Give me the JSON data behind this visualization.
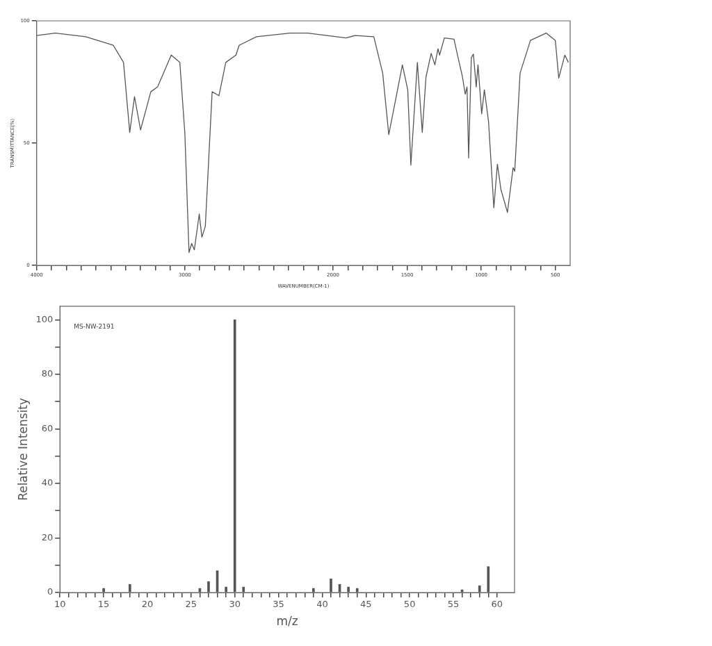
{
  "chart_data": [
    {
      "type": "line",
      "xlabel": "WAVENUMBER(CM-1)",
      "ylabel": "TRANSMITTANCE(%)",
      "xlim": [
        4000,
        400
      ],
      "ylim": [
        0,
        100
      ],
      "grid": false,
      "legend": false,
      "marker": "none",
      "line_style": "solid",
      "xticks": [
        4000,
        {
          "value": 3900,
          "label": null
        },
        {
          "value": 3800,
          "label": null
        },
        {
          "value": 3700,
          "label": null
        },
        {
          "value": 3600,
          "label": null
        },
        {
          "value": 3500,
          "label": null
        },
        {
          "value": 3400,
          "label": null
        },
        {
          "value": 3300,
          "label": null
        },
        {
          "value": 3200,
          "label": null
        },
        {
          "value": 3100,
          "label": null
        },
        3000,
        {
          "value": 2900,
          "label": null
        },
        {
          "value": 2800,
          "label": null
        },
        {
          "value": 2700,
          "label": null
        },
        {
          "value": 2600,
          "label": null
        },
        {
          "value": 2500,
          "label": null
        },
        {
          "value": 2400,
          "label": null
        },
        {
          "value": 2300,
          "label": null
        },
        {
          "value": 2200,
          "label": null
        },
        {
          "value": 2100,
          "label": null
        },
        2000,
        {
          "value": 1900,
          "label": null
        },
        {
          "value": 1800,
          "label": null
        },
        {
          "value": 1700,
          "label": null
        },
        {
          "value": 1600,
          "label": null
        },
        1500,
        {
          "value": 1400,
          "label": null
        },
        {
          "value": 1300,
          "label": null
        },
        {
          "value": 1200,
          "label": null
        },
        {
          "value": 1100,
          "label": null
        },
        1000,
        {
          "value": 900,
          "label": null
        },
        {
          "value": 800,
          "label": null
        },
        {
          "value": 700,
          "label": null
        },
        {
          "value": 600,
          "label": null
        },
        500
      ],
      "yticks": [
        0,
        50,
        100
      ],
      "series": [
        {
          "color": "#555555",
          "x": [
            4000,
            3874,
            3669,
            3483,
            3414,
            3372,
            3340,
            3299,
            3230,
            3184,
            3092,
            3034,
            3000,
            2972,
            2954,
            2936,
            2903,
            2885,
            2862,
            2816,
            2770,
            2724,
            2655,
            2634,
            2517,
            2290,
            2172,
            1912,
            1853,
            1725,
            1665,
            1624,
            1532,
            1496,
            1475,
            1454,
            1431,
            1398,
            1373,
            1338,
            1313,
            1292,
            1281,
            1249,
            1184,
            1149,
            1128,
            1108,
            1096,
            1085,
            1067,
            1053,
            1034,
            1022,
            997,
            979,
            951,
            915,
            891,
            867,
            823,
            785,
            774,
            738,
            668,
            562,
            500,
            477,
            436,
            412
          ],
          "values": [
            94,
            95,
            93.5,
            90,
            83,
            54.4,
            69,
            55.4,
            71,
            73,
            86,
            83,
            54,
            5.3,
            9,
            6.4,
            21,
            11.6,
            16,
            71,
            69.4,
            83,
            86,
            90,
            93.5,
            95,
            95,
            93,
            94,
            93.5,
            78.6,
            53.5,
            82,
            71.8,
            41,
            61,
            83,
            54.4,
            77,
            86.7,
            82,
            88.6,
            86,
            93,
            92.5,
            83,
            77.5,
            70,
            73,
            44,
            85,
            86.4,
            73,
            82,
            62,
            71.8,
            59,
            23.6,
            41.4,
            31,
            21.7,
            40,
            38.5,
            78.6,
            92,
            95,
            92,
            76.6,
            86,
            83
          ]
        }
      ]
    },
    {
      "type": "bar",
      "xlabel": "m/z",
      "ylabel": "Relative Intensity",
      "xlim": [
        10,
        62
      ],
      "ylim": [
        0,
        105
      ],
      "grid": false,
      "legend": false,
      "annotations": [
        "MS-NW-2191"
      ],
      "xticks": [
        10,
        {
          "value": 11,
          "label": null
        },
        {
          "value": 12,
          "label": null
        },
        {
          "value": 13,
          "label": null
        },
        {
          "value": 14,
          "label": null
        },
        15,
        {
          "value": 16,
          "label": null
        },
        {
          "value": 17,
          "label": null
        },
        {
          "value": 18,
          "label": null
        },
        {
          "value": 19,
          "label": null
        },
        20,
        {
          "value": 21,
          "label": null
        },
        {
          "value": 22,
          "label": null
        },
        {
          "value": 23,
          "label": null
        },
        {
          "value": 24,
          "label": null
        },
        25,
        {
          "value": 26,
          "label": null
        },
        {
          "value": 27,
          "label": null
        },
        {
          "value": 28,
          "label": null
        },
        {
          "value": 29,
          "label": null
        },
        30,
        {
          "value": 31,
          "label": null
        },
        {
          "value": 32,
          "label": null
        },
        {
          "value": 33,
          "label": null
        },
        {
          "value": 34,
          "label": null
        },
        35,
        {
          "value": 36,
          "label": null
        },
        {
          "value": 37,
          "label": null
        },
        {
          "value": 38,
          "label": null
        },
        {
          "value": 39,
          "label": null
        },
        40,
        {
          "value": 41,
          "label": null
        },
        {
          "value": 42,
          "label": null
        },
        {
          "value": 43,
          "label": null
        },
        {
          "value": 44,
          "label": null
        },
        45,
        {
          "value": 46,
          "label": null
        },
        {
          "value": 47,
          "label": null
        },
        {
          "value": 48,
          "label": null
        },
        {
          "value": 49,
          "label": null
        },
        50,
        {
          "value": 51,
          "label": null
        },
        {
          "value": 52,
          "label": null
        },
        {
          "value": 53,
          "label": null
        },
        {
          "value": 54,
          "label": null
        },
        55,
        {
          "value": 56,
          "label": null
        },
        {
          "value": 57,
          "label": null
        },
        {
          "value": 58,
          "label": null
        },
        {
          "value": 59,
          "label": null
        },
        60
      ],
      "yticks": [
        0,
        {
          "value": 10,
          "label": null
        },
        20,
        {
          "value": 30,
          "label": null
        },
        40,
        {
          "value": 50,
          "label": null
        },
        60,
        {
          "value": 70,
          "label": null
        },
        80,
        {
          "value": 90,
          "label": null
        },
        100
      ],
      "series": [
        {
          "color": "#555555",
          "x": [
            15,
            18,
            26,
            27,
            28,
            29,
            30,
            31,
            39,
            41,
            42,
            43,
            44,
            56,
            58,
            59
          ],
          "values": [
            1.5,
            3,
            1.5,
            4,
            8,
            2,
            100,
            2,
            1.5,
            5,
            3,
            2,
            1.5,
            1,
            2.5,
            9.5
          ]
        }
      ]
    }
  ]
}
